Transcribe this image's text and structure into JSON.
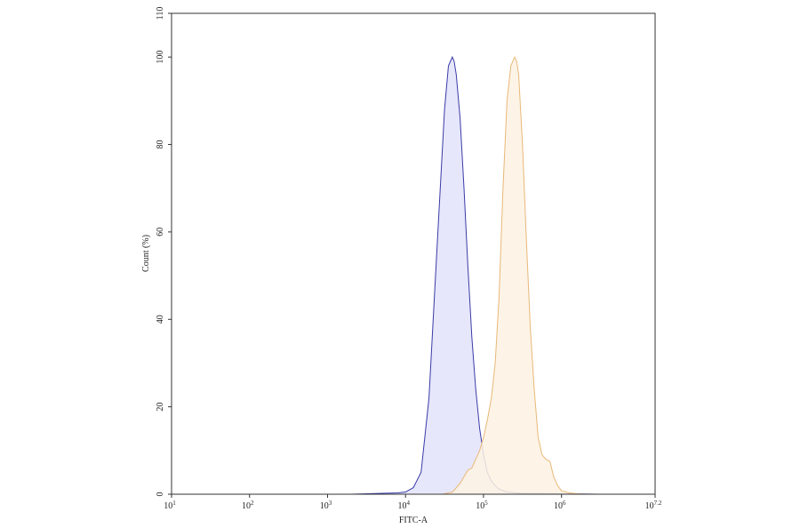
{
  "chart_data": {
    "type": "area",
    "title": "",
    "xlabel": "FITC-A",
    "ylabel": "Count (%)",
    "x_scale": "log10",
    "xlim": [
      10,
      15848932
    ],
    "ylim": [
      0,
      110
    ],
    "x_ticks": [
      {
        "base": "10",
        "exp": "1",
        "value": 10
      },
      {
        "base": "10",
        "exp": "2",
        "value": 100
      },
      {
        "base": "10",
        "exp": "3",
        "value": 1000
      },
      {
        "base": "10",
        "exp": "4",
        "value": 10000
      },
      {
        "base": "10",
        "exp": "5",
        "value": 100000
      },
      {
        "base": "10",
        "exp": "6",
        "value": 1000000
      },
      {
        "base": "10",
        "exp": "7.2",
        "value": 15848932
      }
    ],
    "y_ticks": [
      "0",
      "20",
      "40",
      "60",
      "80",
      "100",
      "110"
    ],
    "grid": false,
    "legend": "none",
    "series": [
      {
        "color": "#3a3aa8",
        "fill": "#e3e3fa",
        "x": [
          2000,
          5000,
          8000,
          10000,
          12600,
          15800,
          20000,
          25100,
          31600,
          35500,
          39800,
          42000,
          44700,
          50100,
          56200,
          63100,
          70800,
          79400,
          89100,
          100000,
          112000,
          126000,
          141000,
          158000,
          200000,
          300000,
          1000000,
          3000000
        ],
        "y": [
          0,
          0.2,
          0.3,
          0.5,
          1.5,
          5,
          22,
          55,
          88,
          98,
          100,
          99,
          96,
          86,
          70,
          52,
          36,
          24,
          15,
          9,
          5,
          3,
          2,
          1.2,
          0.5,
          0.2,
          0.1,
          0
        ]
      },
      {
        "color": "#e8b878",
        "fill": "#fdf2e3",
        "x": [
          30000,
          40000,
          50100,
          56200,
          63100,
          70800,
          79400,
          89100,
          100000,
          112000,
          126000,
          141000,
          158000,
          178000,
          200000,
          224000,
          251000,
          266000,
          282000,
          316000,
          355000,
          398000,
          447000,
          501000,
          562000,
          631000,
          708000,
          794000,
          891000,
          1000000,
          1260000,
          1580000,
          2000000
        ],
        "y": [
          0,
          0.5,
          2.5,
          4,
          5.5,
          6,
          8,
          10,
          13,
          17,
          22,
          30,
          45,
          70,
          90,
          98,
          100,
          99,
          96,
          80,
          58,
          38,
          24,
          13,
          9,
          8,
          7.5,
          4,
          2,
          0.8,
          0.3,
          0.1,
          0
        ]
      }
    ]
  }
}
